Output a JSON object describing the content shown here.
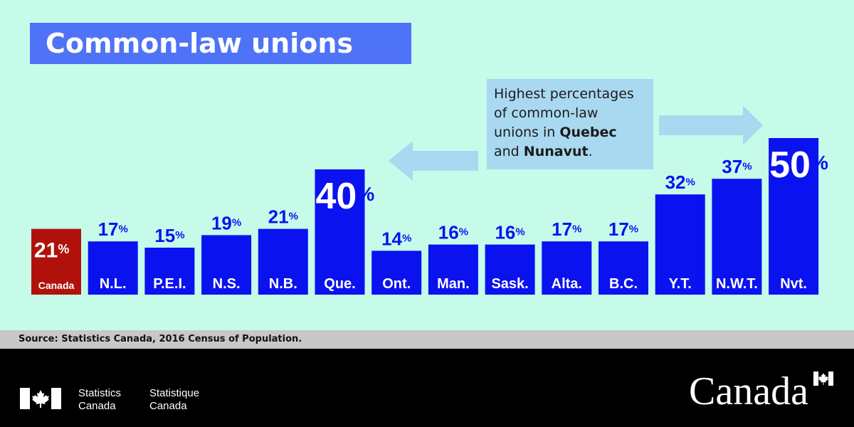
{
  "title": "Common-law unions",
  "callout": {
    "line1": "Highest percentages",
    "line2": "of common-law",
    "line3_pre": "unions in ",
    "line3_bold": "Quebec",
    "line4_pre": "and ",
    "line4_bold": "Nunavut",
    "line4_post": "."
  },
  "source": "Source: Statistics Canada, 2016 Census of Population.",
  "footer": {
    "agency_en_1": "Statistics",
    "agency_en_2": "Canada",
    "agency_fr_1": "Statistique",
    "agency_fr_2": "Canada",
    "wordmark": "Canada"
  },
  "colors": {
    "background": "#c6fbea",
    "bar": "#0b12f0",
    "canada_bar": "#b0120b",
    "title_bg": "#4f73f6",
    "callout_bg": "#a9d9f0",
    "arrow": "#a9d9f0",
    "footer_bg": "#000000"
  },
  "chart_data": {
    "type": "bar",
    "categories": [
      "Canada",
      "N.L.",
      "P.E.I.",
      "N.S.",
      "N.B.",
      "Que.",
      "Ont.",
      "Man.",
      "Sask.",
      "Alta.",
      "B.C.",
      "Y.T.",
      "N.W.T.",
      "Nvt."
    ],
    "values": [
      21,
      17,
      15,
      19,
      21,
      40,
      14,
      16,
      16,
      17,
      17,
      32,
      37,
      50
    ],
    "unit": "%",
    "highlight": [
      "Que.",
      "Nvt."
    ],
    "reference": "Canada",
    "title": "Common-law unions",
    "xlabel": "",
    "ylabel": "",
    "ylim": [
      0,
      50
    ],
    "grid": false,
    "legend": "none"
  }
}
